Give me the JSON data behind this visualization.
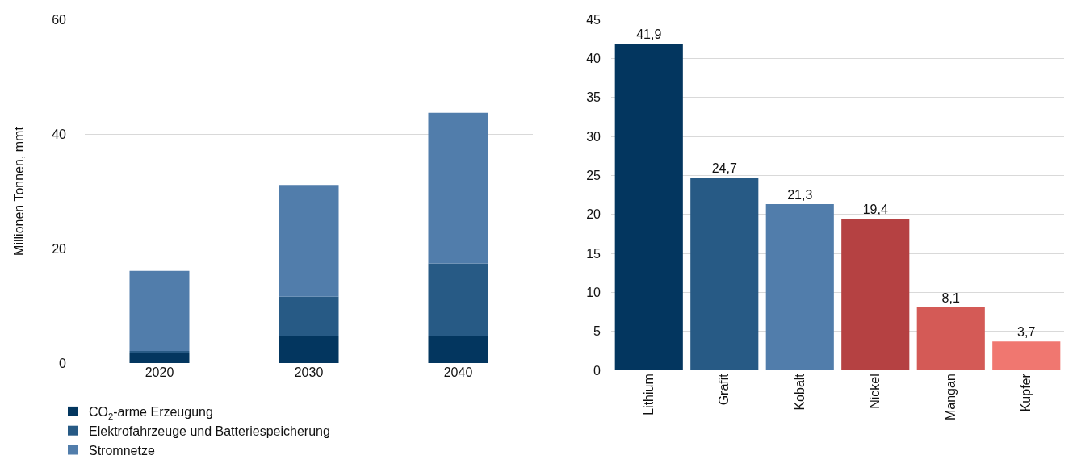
{
  "chart_data": [
    {
      "type": "bar",
      "stacked": true,
      "ylabel": "Millionen Tonnen, mmt",
      "categories": [
        "2020",
        "2030",
        "2040"
      ],
      "ylim": [
        0,
        60
      ],
      "yticks": [
        0,
        20,
        40,
        60
      ],
      "grid": "y",
      "legend": "bottom left",
      "series": [
        {
          "name": "CO$_{2}$-arme Erzeugung",
          "color": "#03365f",
          "values": [
            1.7,
            4.8,
            4.8
          ]
        },
        {
          "name": "Elektrofahrzeuge und Batteriespeicherung",
          "color": "#275a85",
          "values": [
            0.4,
            6.8,
            12.6
          ]
        },
        {
          "name": "Stromnetze",
          "color": "#517dab",
          "values": [
            14.0,
            19.5,
            26.3
          ]
        }
      ]
    },
    {
      "type": "bar",
      "categories": [
        "Lithium",
        "Grafit",
        "Kobalt",
        "Nickel",
        "Mangan",
        "Kupfer"
      ],
      "values": [
        41.9,
        24.7,
        21.3,
        19.4,
        8.1,
        3.7
      ],
      "value_labels": [
        "41,9",
        "24,7",
        "21,3",
        "19,4",
        "8,1",
        "3,7"
      ],
      "colors": [
        "#03365f",
        "#275a85",
        "#517dab",
        "#b54142",
        "#d45a56",
        "#f07770"
      ],
      "ylim": [
        0,
        45
      ],
      "yticks": [
        0,
        5,
        10,
        15,
        20,
        25,
        30,
        35,
        40,
        45
      ],
      "grid": "y",
      "legend": false
    }
  ]
}
